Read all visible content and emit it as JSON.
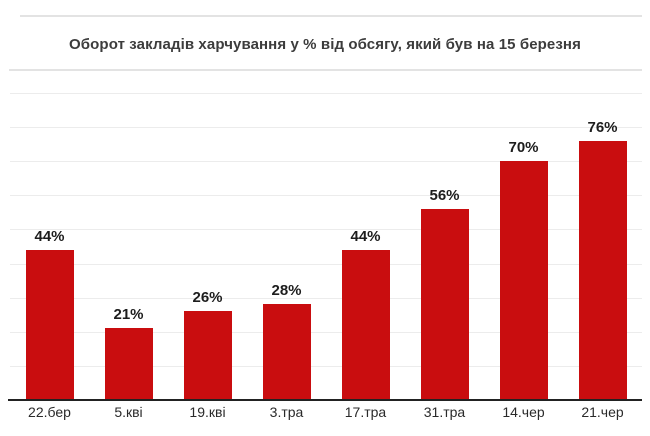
{
  "chart_data": {
    "type": "bar",
    "title": "Оборот закладів харчування у % від обсягу, який був на 15 березня",
    "categories": [
      "22.бер",
      "5.кві",
      "19.кві",
      "3.тра",
      "17.тра",
      "31.тра",
      "14.чер",
      "21.чер"
    ],
    "values": [
      44,
      21,
      26,
      28,
      44,
      56,
      70,
      76
    ],
    "value_labels": [
      "44%",
      "21%",
      "26%",
      "28%",
      "44%",
      "56%",
      "70%",
      "76%"
    ],
    "xlabel": "",
    "ylabel": "",
    "ylim": [
      0,
      90
    ],
    "grid_step": 10,
    "grid": "horizontal light gridlines, dark baseline axis",
    "legend_position": "none",
    "colors": {
      "bar": "#c90d0f",
      "axis_line": "#222222",
      "gridline": "#ececec",
      "divider_rule": "#e3e3e3",
      "title_text": "#3c3c3c",
      "value_label_text": "#1d1d1d",
      "axis_label_text": "#2a2a2a",
      "background": "#ffffff"
    }
  }
}
